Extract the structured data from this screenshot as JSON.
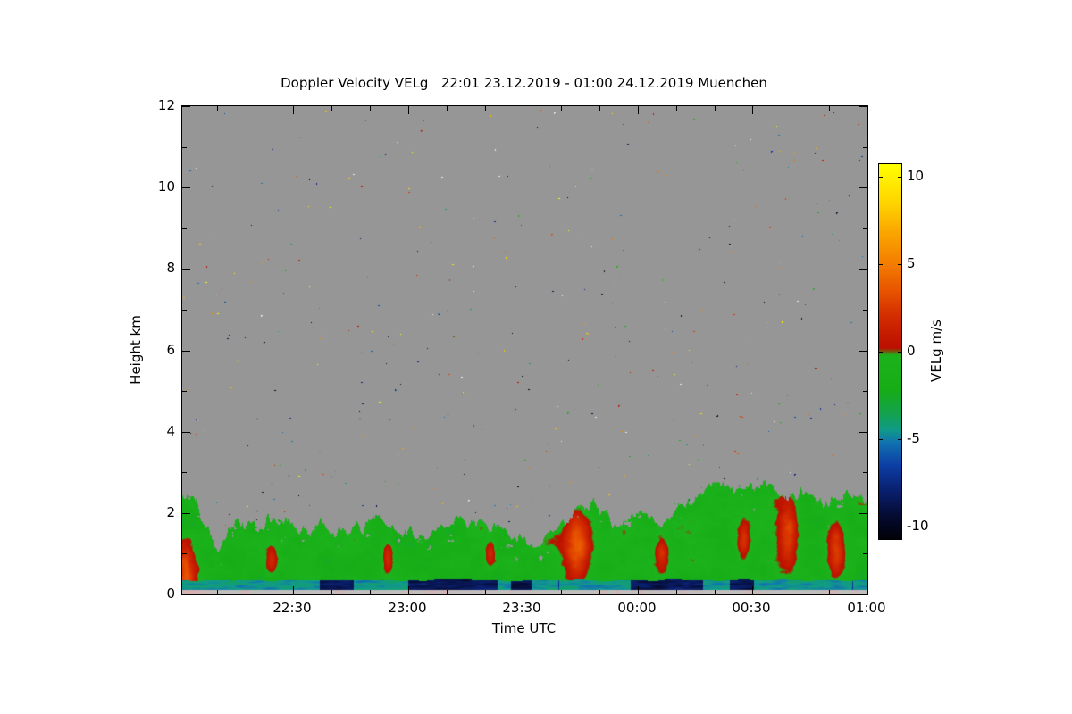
{
  "chart_data": {
    "type": "heatmap",
    "title": "Doppler Velocity VELg   22:01 23.12.2019 - 01:00 24.12.2019 Muenchen",
    "station": "Muenchen",
    "time_start": "22:01 23.12.2019",
    "time_end": "01:00 24.12.2019",
    "xlabel": "Time UTC",
    "ylabel": "Height km",
    "x_span_minutes": 179,
    "x_ticks": [
      {
        "label": "22:30",
        "minute": 29
      },
      {
        "label": "23:00",
        "minute": 59
      },
      {
        "label": "23:30",
        "minute": 89
      },
      {
        "label": "00:00",
        "minute": 119
      },
      {
        "label": "00:30",
        "minute": 149
      },
      {
        "label": "01:00",
        "minute": 179
      }
    ],
    "minor_tick_minutes": 10,
    "y_range_km": [
      0,
      12
    ],
    "y_ticks": [
      0,
      2,
      4,
      6,
      8,
      10,
      12
    ],
    "y_minor_ticks": [
      1,
      3,
      5,
      7,
      9,
      11
    ],
    "no_signal_color": "#969696",
    "colorbar": {
      "label": "VELg m/s",
      "ticks": [
        10,
        5,
        0,
        -5,
        -10
      ],
      "range": [
        -10.7,
        10.7
      ],
      "stops": [
        [
          -11.0,
          "#000000"
        ],
        [
          -9.5,
          "#050b2e"
        ],
        [
          -8.0,
          "#0a1f6e"
        ],
        [
          -6.5,
          "#0d3fa6"
        ],
        [
          -5.2,
          "#1173b0"
        ],
        [
          -4.5,
          "#119a8a"
        ],
        [
          -3.6,
          "#14a352"
        ],
        [
          -2.2,
          "#17ad17"
        ],
        [
          -0.2,
          "#1db31d"
        ],
        [
          0.2,
          "#bb0f00"
        ],
        [
          2.0,
          "#d32d00"
        ],
        [
          3.5,
          "#e85500"
        ],
        [
          5.0,
          "#f47d00"
        ],
        [
          7.0,
          "#fbab00"
        ],
        [
          8.5,
          "#ffd500"
        ],
        [
          10.7,
          "#ffff00"
        ]
      ]
    },
    "field": {
      "seed": 20191223,
      "speckles": 470,
      "mean_velocity": -1.3,
      "texture_amplitude": 1.6,
      "top_profile": [
        [
          0,
          2.3
        ],
        [
          0.02,
          2.25
        ],
        [
          0.05,
          1.15
        ],
        [
          0.08,
          1.9
        ],
        [
          0.11,
          1.55
        ],
        [
          0.14,
          1.95
        ],
        [
          0.17,
          1.5
        ],
        [
          0.2,
          1.75
        ],
        [
          0.24,
          1.45
        ],
        [
          0.28,
          1.85
        ],
        [
          0.32,
          1.5
        ],
        [
          0.36,
          1.35
        ],
        [
          0.4,
          2.1
        ],
        [
          0.44,
          1.65
        ],
        [
          0.48,
          1.5
        ],
        [
          0.52,
          1.15
        ],
        [
          0.55,
          1.5
        ],
        [
          0.575,
          2.05
        ],
        [
          0.6,
          2.3
        ],
        [
          0.63,
          1.65
        ],
        [
          0.66,
          2.0
        ],
        [
          0.7,
          1.85
        ],
        [
          0.73,
          2.2
        ],
        [
          0.76,
          2.45
        ],
        [
          0.79,
          2.75
        ],
        [
          0.82,
          2.55
        ],
        [
          0.85,
          2.85
        ],
        [
          0.88,
          2.35
        ],
        [
          0.91,
          2.6
        ],
        [
          0.94,
          2.15
        ],
        [
          0.97,
          2.5
        ],
        [
          1,
          2.35
        ]
      ],
      "red_patches": [
        {
          "x": 0.005,
          "h": 0.55,
          "rx": 0.012,
          "rh": 0.55,
          "v": 3.4
        },
        {
          "x": 0.576,
          "h": 1.2,
          "rx": 0.018,
          "rh": 0.8,
          "v": 3.6
        },
        {
          "x": 0.885,
          "h": 1.5,
          "rx": 0.013,
          "rh": 0.75,
          "v": 2.9
        },
        {
          "x": 0.955,
          "h": 1.1,
          "rx": 0.011,
          "rh": 0.65,
          "v": 2.7
        },
        {
          "x": 0.3,
          "h": 0.9,
          "rx": 0.007,
          "rh": 0.35,
          "v": 1.9
        },
        {
          "x": 0.45,
          "h": 1.0,
          "rx": 0.007,
          "rh": 0.3,
          "v": 1.7
        },
        {
          "x": 0.13,
          "h": 0.8,
          "rx": 0.007,
          "rh": 0.3,
          "v": 1.8
        },
        {
          "x": 0.7,
          "h": 1.0,
          "rx": 0.008,
          "rh": 0.4,
          "v": 1.9
        },
        {
          "x": 0.82,
          "h": 1.3,
          "rx": 0.008,
          "rh": 0.45,
          "v": 2.0
        }
      ],
      "surface_band": {
        "h_range": [
          0.1,
          0.34
        ],
        "velocity": -4.6,
        "dark_velocity": -8.6,
        "dark_segments": [
          [
            0.2,
            0.25
          ],
          [
            0.33,
            0.46
          ],
          [
            0.48,
            0.51
          ],
          [
            0.655,
            0.76
          ],
          [
            0.8,
            0.835
          ]
        ]
      },
      "ground_strip": {
        "h_range": [
          0,
          0.1
        ],
        "color": "#c3bebe",
        "tint": "#d7afaf"
      }
    }
  }
}
